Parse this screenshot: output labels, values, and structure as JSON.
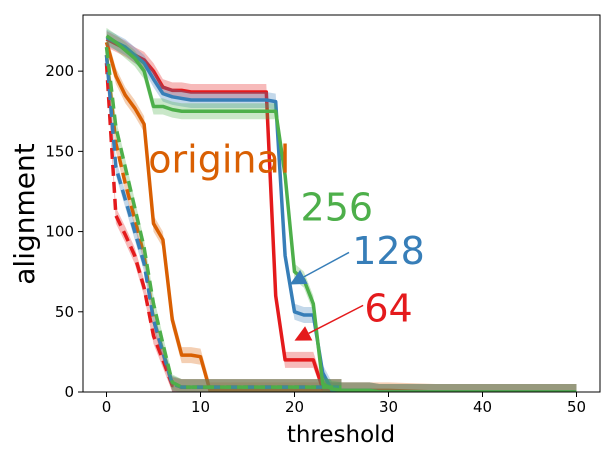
{
  "chart_data": {
    "type": "line",
    "title": "",
    "xlabel": "threshold",
    "ylabel": "alignment",
    "xlim": [
      -2.5,
      52.5
    ],
    "ylim": [
      0,
      235
    ],
    "xticks": [
      0,
      10,
      20,
      30,
      40,
      50
    ],
    "yticks": [
      0,
      50,
      100,
      150,
      200
    ],
    "grid": false,
    "legend": "none",
    "annotations": [
      {
        "text": "original",
        "x": 12,
        "y": 145,
        "color": "#d95f02",
        "arrow_to": null
      },
      {
        "text": "256",
        "x": 24.5,
        "y": 115,
        "color": "#4daf4a",
        "arrow_to": null
      },
      {
        "text": "128",
        "x": 30,
        "y": 88,
        "color": "#377eb8",
        "arrow_to": [
          19.5,
          67
        ],
        "arrow_from": [
          25.8,
          87
        ]
      },
      {
        "text": "64",
        "x": 30,
        "y": 52,
        "color": "#e41a1c",
        "arrow_to": [
          20,
          32
        ],
        "arrow_from": [
          27.3,
          54
        ]
      }
    ],
    "series": [
      {
        "color": "#d95f02",
        "style": "solid",
        "x": [
          0,
          1,
          2,
          3,
          4,
          5,
          6,
          7,
          8,
          9,
          10,
          11,
          12,
          13,
          14,
          15,
          16,
          17,
          18,
          19,
          20,
          21,
          22,
          23,
          24,
          25,
          26,
          27,
          28,
          29,
          30,
          35,
          40,
          45,
          50
        ],
        "y": [
          218,
          197,
          185,
          177,
          167,
          105,
          95,
          45,
          23,
          23,
          22,
          1,
          1,
          1,
          1,
          1,
          1,
          1,
          1,
          1,
          1,
          1,
          1,
          1,
          1,
          1,
          1,
          1,
          1,
          1,
          1,
          0,
          0,
          0,
          0
        ]
      },
      {
        "color": "#d95f02",
        "style": "dashed",
        "x": [
          0,
          1,
          2,
          3,
          4,
          5,
          6,
          7,
          8,
          9,
          10,
          11,
          12,
          13,
          14,
          15,
          16,
          17,
          18,
          19,
          20,
          21,
          22,
          23,
          24,
          25
        ],
        "y": [
          210,
          155,
          130,
          108,
          85,
          45,
          25,
          5,
          3,
          3,
          3,
          3,
          3,
          3,
          3,
          3,
          3,
          3,
          3,
          3,
          3,
          3,
          3,
          3,
          3,
          3
        ]
      },
      {
        "color": "#e41a1c",
        "style": "solid",
        "x": [
          0,
          1,
          2,
          3,
          4,
          5,
          6,
          7,
          8,
          9,
          10,
          11,
          12,
          13,
          14,
          15,
          16,
          17,
          18,
          19,
          20,
          21,
          22,
          23,
          24,
          25,
          26,
          27,
          28,
          29,
          30,
          35,
          40,
          45,
          50
        ],
        "y": [
          220,
          217,
          214,
          210,
          207,
          200,
          190,
          188,
          188,
          187,
          187,
          187,
          187,
          187,
          187,
          187,
          187,
          187,
          60,
          20,
          20,
          20,
          20,
          2,
          1,
          1,
          1,
          1,
          1,
          0,
          0,
          0,
          0,
          0,
          0
        ]
      },
      {
        "color": "#e41a1c",
        "style": "dashed",
        "x": [
          0,
          1,
          2,
          3,
          4,
          5,
          6,
          7,
          8,
          9,
          10,
          11,
          12,
          13,
          14,
          15,
          16,
          17,
          18,
          19,
          20,
          21,
          22,
          23,
          24,
          25
        ],
        "y": [
          205,
          110,
          98,
          85,
          65,
          35,
          20,
          4,
          3,
          3,
          3,
          3,
          3,
          3,
          3,
          3,
          3,
          3,
          3,
          3,
          3,
          3,
          3,
          3,
          3,
          3
        ]
      },
      {
        "color": "#377eb8",
        "style": "solid",
        "x": [
          0,
          1,
          2,
          3,
          4,
          5,
          6,
          7,
          8,
          9,
          10,
          11,
          12,
          13,
          14,
          15,
          16,
          17,
          18,
          19,
          20,
          21,
          22,
          23,
          24,
          25,
          26,
          27,
          28,
          29,
          30,
          35,
          40,
          45,
          50
        ],
        "y": [
          221,
          218,
          215,
          210,
          205,
          195,
          186,
          184,
          183,
          182,
          182,
          182,
          182,
          182,
          182,
          182,
          182,
          182,
          181,
          85,
          50,
          48,
          48,
          12,
          1,
          1,
          1,
          1,
          1,
          0,
          0,
          0,
          0,
          0,
          0
        ]
      },
      {
        "color": "#377eb8",
        "style": "dashed",
        "x": [
          0,
          1,
          2,
          3,
          4,
          5,
          6,
          7,
          8,
          9,
          10,
          11,
          12,
          13,
          14,
          15,
          16,
          17,
          18,
          19,
          20,
          21,
          22,
          23,
          24,
          25
        ],
        "y": [
          210,
          140,
          120,
          100,
          80,
          45,
          25,
          5,
          3,
          3,
          3,
          3,
          3,
          3,
          3,
          3,
          3,
          3,
          3,
          3,
          3,
          3,
          3,
          3,
          3,
          3
        ]
      },
      {
        "color": "#4daf4a",
        "style": "solid",
        "x": [
          0,
          1,
          2,
          3,
          4,
          5,
          6,
          7,
          8,
          9,
          10,
          11,
          12,
          13,
          14,
          15,
          16,
          17,
          18,
          19,
          20,
          21,
          22,
          23,
          24,
          25,
          26,
          27,
          28,
          29,
          30,
          35,
          40,
          45,
          50
        ],
        "y": [
          222,
          218,
          213,
          208,
          200,
          178,
          178,
          176,
          175,
          175,
          175,
          175,
          175,
          175,
          175,
          175,
          175,
          175,
          175,
          135,
          75,
          70,
          55,
          5,
          2,
          1,
          1,
          1,
          1,
          0,
          0,
          0,
          0,
          0,
          0
        ]
      },
      {
        "color": "#4daf4a",
        "style": "dashed",
        "x": [
          0,
          1,
          2,
          3,
          4,
          5,
          6,
          7,
          8,
          9,
          10,
          11,
          12,
          13,
          14,
          15,
          16,
          17,
          18,
          19,
          20,
          21,
          22,
          23,
          24,
          25
        ],
        "y": [
          215,
          165,
          140,
          115,
          90,
          55,
          30,
          6,
          3,
          3,
          3,
          3,
          3,
          3,
          3,
          3,
          3,
          3,
          3,
          3,
          3,
          3,
          3,
          3,
          3,
          3
        ]
      }
    ]
  }
}
